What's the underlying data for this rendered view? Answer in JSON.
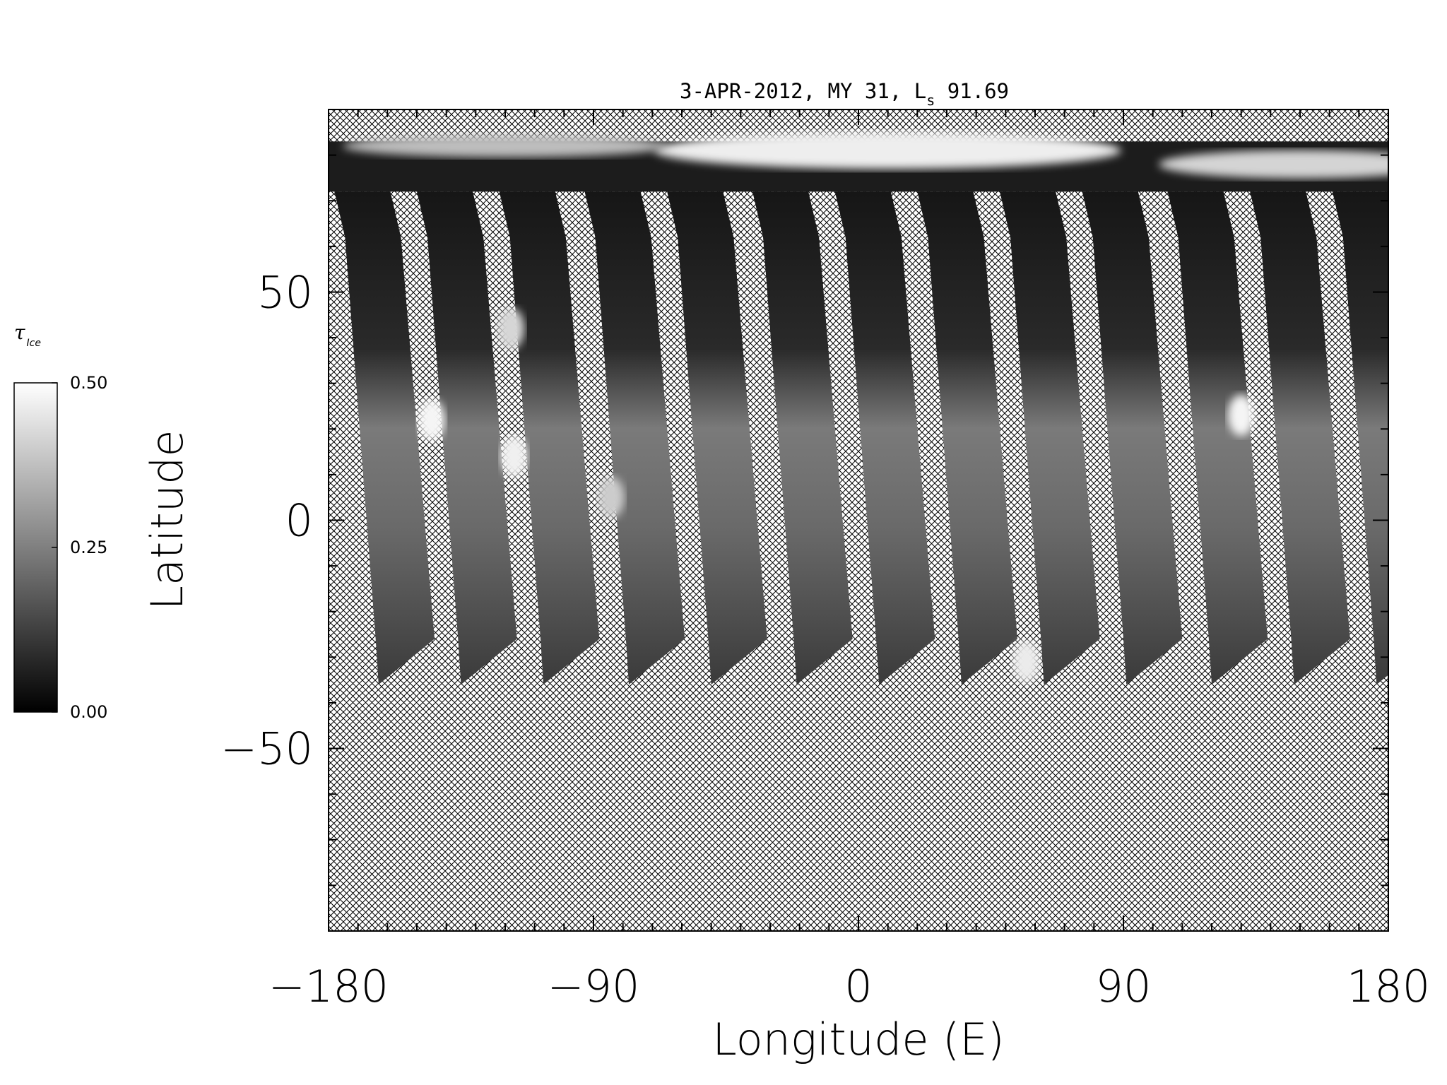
{
  "chart_data": {
    "type": "heatmap",
    "title_main": "3-APR-2012, MY 31,  L",
    "title_sub": "s",
    "title_value": " 91.69",
    "xlabel": "Longitude (E)",
    "ylabel": "Latitude",
    "xlim": [
      -180,
      180
    ],
    "ylim": [
      -90,
      90
    ],
    "xticks": [
      -180,
      -90,
      0,
      90,
      180
    ],
    "xtick_labels": [
      "−180",
      "−90",
      "0",
      "90",
      "180"
    ],
    "yticks": [
      -50,
      0,
      50
    ],
    "ytick_labels": [
      "−50",
      "0",
      "50"
    ],
    "colorbar": {
      "title": "τ",
      "title_sub": "Ice",
      "min": 0.0,
      "max": 0.5,
      "ticks": [
        0.0,
        0.25,
        0.5
      ],
      "tick_labels": [
        "0.00",
        "0.25",
        "0.50"
      ],
      "colormap": "grayscale"
    },
    "missing_data_fill": "crosshatch",
    "swaths": {
      "count": 13,
      "start_lon": [
        -175,
        -147,
        -119,
        -90,
        -62,
        -33,
        -5,
        23,
        51,
        79,
        108,
        136,
        164
      ],
      "top_lat": 62,
      "bottom_lat": -36
    },
    "cloud_features": [
      {
        "lon": -145,
        "lat": 22,
        "tau": 0.48
      },
      {
        "lon": -117,
        "lat": 14,
        "tau": 0.47
      },
      {
        "lon": -118,
        "lat": 42,
        "tau": 0.42
      },
      {
        "lon": -84,
        "lat": 5,
        "tau": 0.4
      },
      {
        "lon": 130,
        "lat": 23,
        "tau": 0.48
      },
      {
        "lon": 57,
        "lat": -31,
        "tau": 0.46
      }
    ]
  }
}
